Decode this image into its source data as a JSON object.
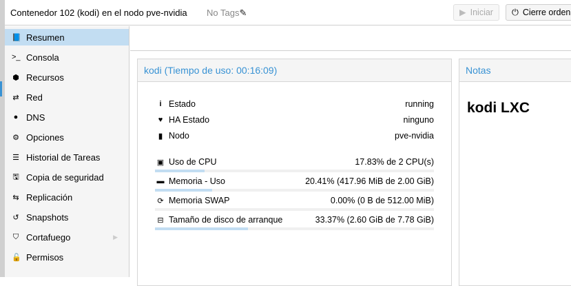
{
  "header": {
    "title": "Contenedor 102 (kodi) en el nodo pve-nvidia",
    "tags": "No Tags",
    "start_label": "Iniciar",
    "shutdown_label": "Cierre ordena"
  },
  "sidebar": {
    "items": [
      {
        "label": "Resumen",
        "icon": "book-icon",
        "glyph": "📘"
      },
      {
        "label": "Consola",
        "icon": "terminal-icon",
        "glyph": ">_"
      },
      {
        "label": "Recursos",
        "icon": "cube-icon",
        "glyph": "⬢"
      },
      {
        "label": "Red",
        "icon": "exchange-icon",
        "glyph": "⇄"
      },
      {
        "label": "DNS",
        "icon": "globe-icon",
        "glyph": "●"
      },
      {
        "label": "Opciones",
        "icon": "gear-icon",
        "glyph": "⚙"
      },
      {
        "label": "Historial de Tareas",
        "icon": "list-icon",
        "glyph": "☰"
      },
      {
        "label": "Copia de seguridad",
        "icon": "floppy-icon",
        "glyph": "🖫"
      },
      {
        "label": "Replicación",
        "icon": "retweet-icon",
        "glyph": "⇆"
      },
      {
        "label": "Snapshots",
        "icon": "history-icon",
        "glyph": "↺"
      },
      {
        "label": "Cortafuego",
        "icon": "shield-icon",
        "glyph": "⛉"
      },
      {
        "label": "Permisos",
        "icon": "unlock-icon",
        "glyph": "🔓"
      }
    ],
    "selected": "Resumen"
  },
  "status": {
    "title": "kodi (Tiempo de uso: 00:16:09)",
    "info": [
      {
        "label": "Estado",
        "value": "running",
        "icon": "info-icon",
        "glyph": "i"
      },
      {
        "label": "HA Estado",
        "value": "ninguno",
        "icon": "heartbeat-icon",
        "glyph": "♥"
      },
      {
        "label": "Nodo",
        "value": "pve-nvidia",
        "icon": "server-icon",
        "glyph": "▮"
      }
    ],
    "usage": [
      {
        "label": "Uso de CPU",
        "value": "17.83% de 2 CPU(s)",
        "percent": 17.83,
        "icon": "cpu-icon",
        "glyph": "▣"
      },
      {
        "label": "Memoria - Uso",
        "value": "20.41% (417.96 MiB de 2.00 GiB)",
        "percent": 20.41,
        "icon": "memory-icon",
        "glyph": "▬"
      },
      {
        "label": "Memoria SWAP",
        "value": "0.00% (0 B de 512.00 MiB)",
        "percent": 0,
        "icon": "refresh-icon",
        "glyph": "⟳"
      },
      {
        "label": "Tamaño de disco de arranque",
        "value": "33.37% (2.60 GiB de 7.78 GiB)",
        "percent": 33.37,
        "icon": "hdd-icon",
        "glyph": "⊟"
      }
    ]
  },
  "notes": {
    "title": "Notas",
    "content": "kodi LXC"
  }
}
